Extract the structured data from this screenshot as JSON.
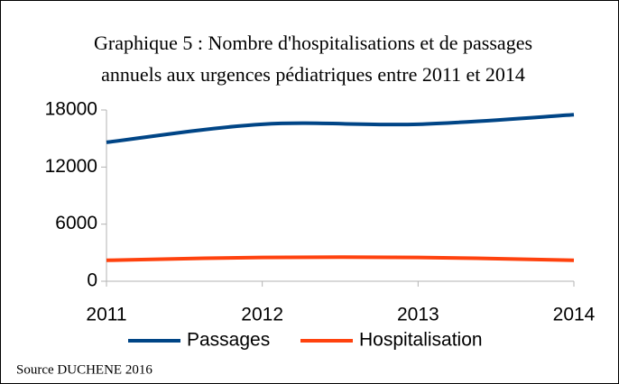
{
  "chart_data": {
    "type": "line",
    "title": [
      "Graphique 5 : Nombre d'hospitalisations et de passages",
      "annuels aux urgences pédiatriques entre 2011 et 2014"
    ],
    "x": [
      2011,
      2012,
      2013,
      2014
    ],
    "xlim": [
      2011,
      2014
    ],
    "xticks": [
      2011,
      2012,
      2013,
      2014
    ],
    "ylim": [
      0,
      18000
    ],
    "yticks": [
      0,
      6000,
      12000,
      18000
    ],
    "series": [
      {
        "name": "Passages",
        "color": "#004586",
        "values": [
          14600,
          16500,
          16500,
          17500
        ]
      },
      {
        "name": "Hospitalisation",
        "color": "#ff420e",
        "values": [
          2200,
          2500,
          2500,
          2200
        ]
      }
    ],
    "smooth": true,
    "legend": "bottom",
    "source": "Source DUCHENE 2016"
  }
}
